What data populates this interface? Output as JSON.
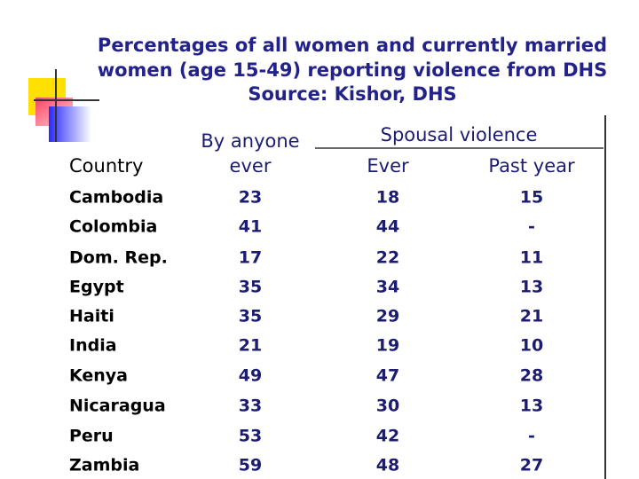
{
  "header": {
    "title": [
      "Percentages of all women and currently married",
      "women (age 15-49) reporting violence from DHS",
      "Source: Kishor, DHS"
    ]
  },
  "table": {
    "columns": {
      "country": "Country",
      "by_anyone": [
        "By anyone",
        "ever"
      ],
      "spousal": "Spousal violence",
      "ever": "Ever",
      "past_year": "Past year"
    },
    "rows": [
      [
        "Cambodia",
        23,
        18,
        15
      ],
      [
        "Colombia",
        41,
        44,
        "-"
      ],
      [
        "Dom. Rep.",
        17,
        22,
        11
      ],
      [
        "Egypt",
        35,
        34,
        13
      ],
      [
        "Haiti",
        35,
        29,
        21
      ],
      [
        "India",
        21,
        19,
        10
      ],
      [
        "Kenya",
        49,
        47,
        28
      ],
      [
        "Nicaragua",
        33,
        30,
        13
      ],
      [
        "Peru",
        53,
        42,
        "-"
      ],
      [
        "Zambia",
        59,
        48,
        27
      ]
    ]
  }
}
